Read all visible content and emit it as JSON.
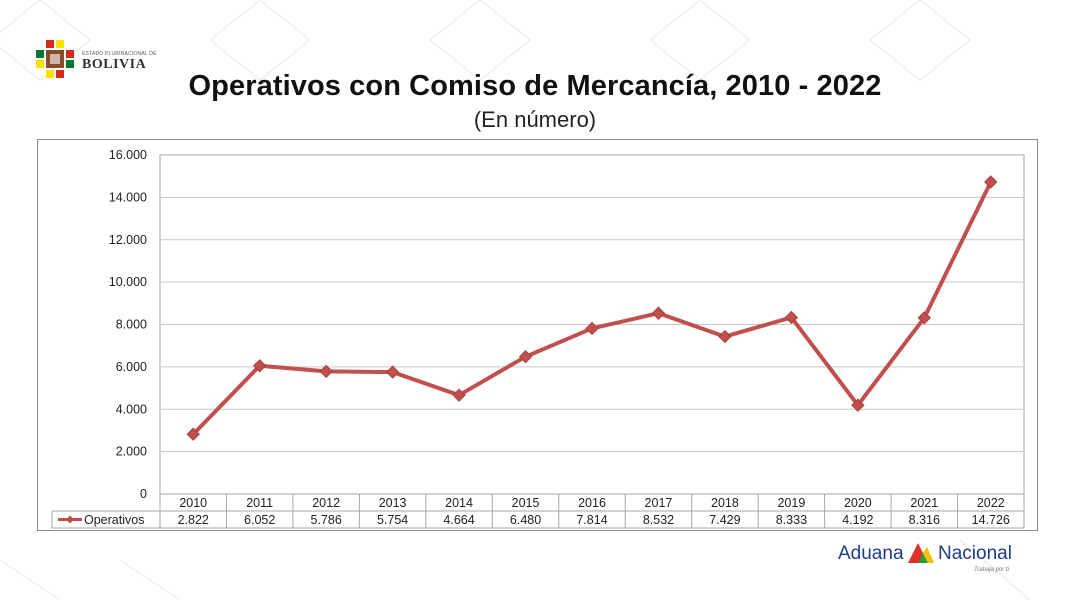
{
  "header": {
    "logo_small": "ESTADO PLURINACIONAL DE",
    "logo_big": "BOLIVIA",
    "title": "Operativos con Comiso de Mercancía, 2010 - 2022",
    "subtitle": "(En número)"
  },
  "footer": {
    "logo_part1": "Aduana",
    "logo_part2": "Nacional",
    "tagline": "Trabaja por ti"
  },
  "colors": {
    "series": "#c0504d",
    "grid": "#c8c8c8",
    "logo_blue": "#1e3b8e",
    "logo_red": "#e0322b",
    "logo_green": "#2f9a3e",
    "logo_yellow": "#f2c200"
  },
  "chart_data": {
    "type": "line",
    "title": "Operativos con Comiso de Mercancía, 2010 - 2022",
    "subtitle": "(En número)",
    "categories": [
      "2010",
      "2011",
      "2012",
      "2013",
      "2014",
      "2015",
      "2016",
      "2017",
      "2018",
      "2019",
      "2020",
      "2021",
      "2022"
    ],
    "series": [
      {
        "name": "Operativos",
        "values": [
          2822,
          6052,
          5786,
          5754,
          4664,
          6480,
          7814,
          8532,
          7429,
          8333,
          4192,
          8316,
          14726
        ],
        "value_labels": [
          "2.822",
          "6.052",
          "5.786",
          "5.754",
          "4.664",
          "6.480",
          "7.814",
          "8.532",
          "7.429",
          "8.333",
          "4.192",
          "8.316",
          "14.726"
        ],
        "marker": "diamond"
      }
    ],
    "ylim": [
      0,
      16000
    ],
    "yticks": [
      0,
      2000,
      4000,
      6000,
      8000,
      10000,
      12000,
      14000,
      16000
    ],
    "ytick_labels": [
      "0",
      "2.000",
      "4.000",
      "6.000",
      "8.000",
      "10.000",
      "12.000",
      "14.000",
      "16.000"
    ],
    "xlabel": "",
    "ylabel": "",
    "grid": true,
    "legend": "data-table-left"
  }
}
